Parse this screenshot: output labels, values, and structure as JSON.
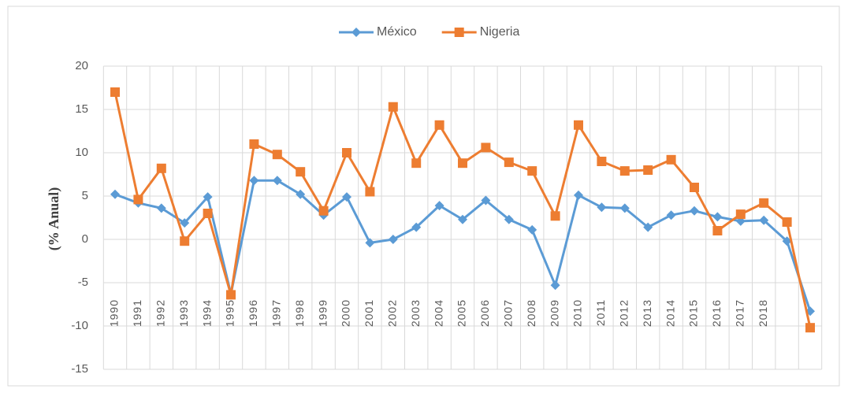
{
  "chart_data": {
    "type": "line",
    "y_label": "(% Anual)",
    "categories": [
      "1990",
      "1991",
      "1992",
      "1993",
      "1994",
      "1995",
      "1996",
      "1997",
      "1998",
      "1999",
      "2000",
      "2001",
      "2002",
      "2003",
      "2004",
      "2005",
      "2006",
      "2007",
      "2008",
      "2009",
      "2010",
      "2011",
      "2012",
      "2013",
      "2014",
      "2015",
      "2016",
      "2017",
      "2018",
      null,
      null
    ],
    "series": [
      {
        "name": "México",
        "color": "#5b9bd5",
        "marker": "diamond",
        "values": [
          5.2,
          4.2,
          3.6,
          1.9,
          4.9,
          -6.3,
          6.8,
          6.8,
          5.2,
          2.8,
          4.9,
          -0.4,
          0.0,
          1.4,
          3.9,
          2.3,
          4.5,
          2.3,
          1.1,
          -5.3,
          5.1,
          3.7,
          3.6,
          1.4,
          2.8,
          3.3,
          2.6,
          2.1,
          2.2,
          -0.2,
          -8.3
        ]
      },
      {
        "name": "Nigeria",
        "color": "#ed7d31",
        "marker": "square",
        "values": [
          17.0,
          4.6,
          8.2,
          -0.2,
          3.0,
          -6.4,
          11.0,
          9.8,
          7.8,
          3.3,
          10.0,
          5.5,
          15.3,
          8.8,
          13.2,
          8.8,
          10.6,
          8.9,
          7.9,
          2.7,
          13.2,
          9.0,
          7.9,
          8.0,
          9.2,
          6.0,
          1.0,
          2.9,
          4.2,
          2.0,
          -10.2
        ]
      }
    ],
    "ylim": [
      -15,
      20
    ],
    "yticks": [
      -15,
      -10,
      -5,
      0,
      5,
      10,
      15,
      20
    ],
    "grid": true,
    "legend": "top"
  }
}
